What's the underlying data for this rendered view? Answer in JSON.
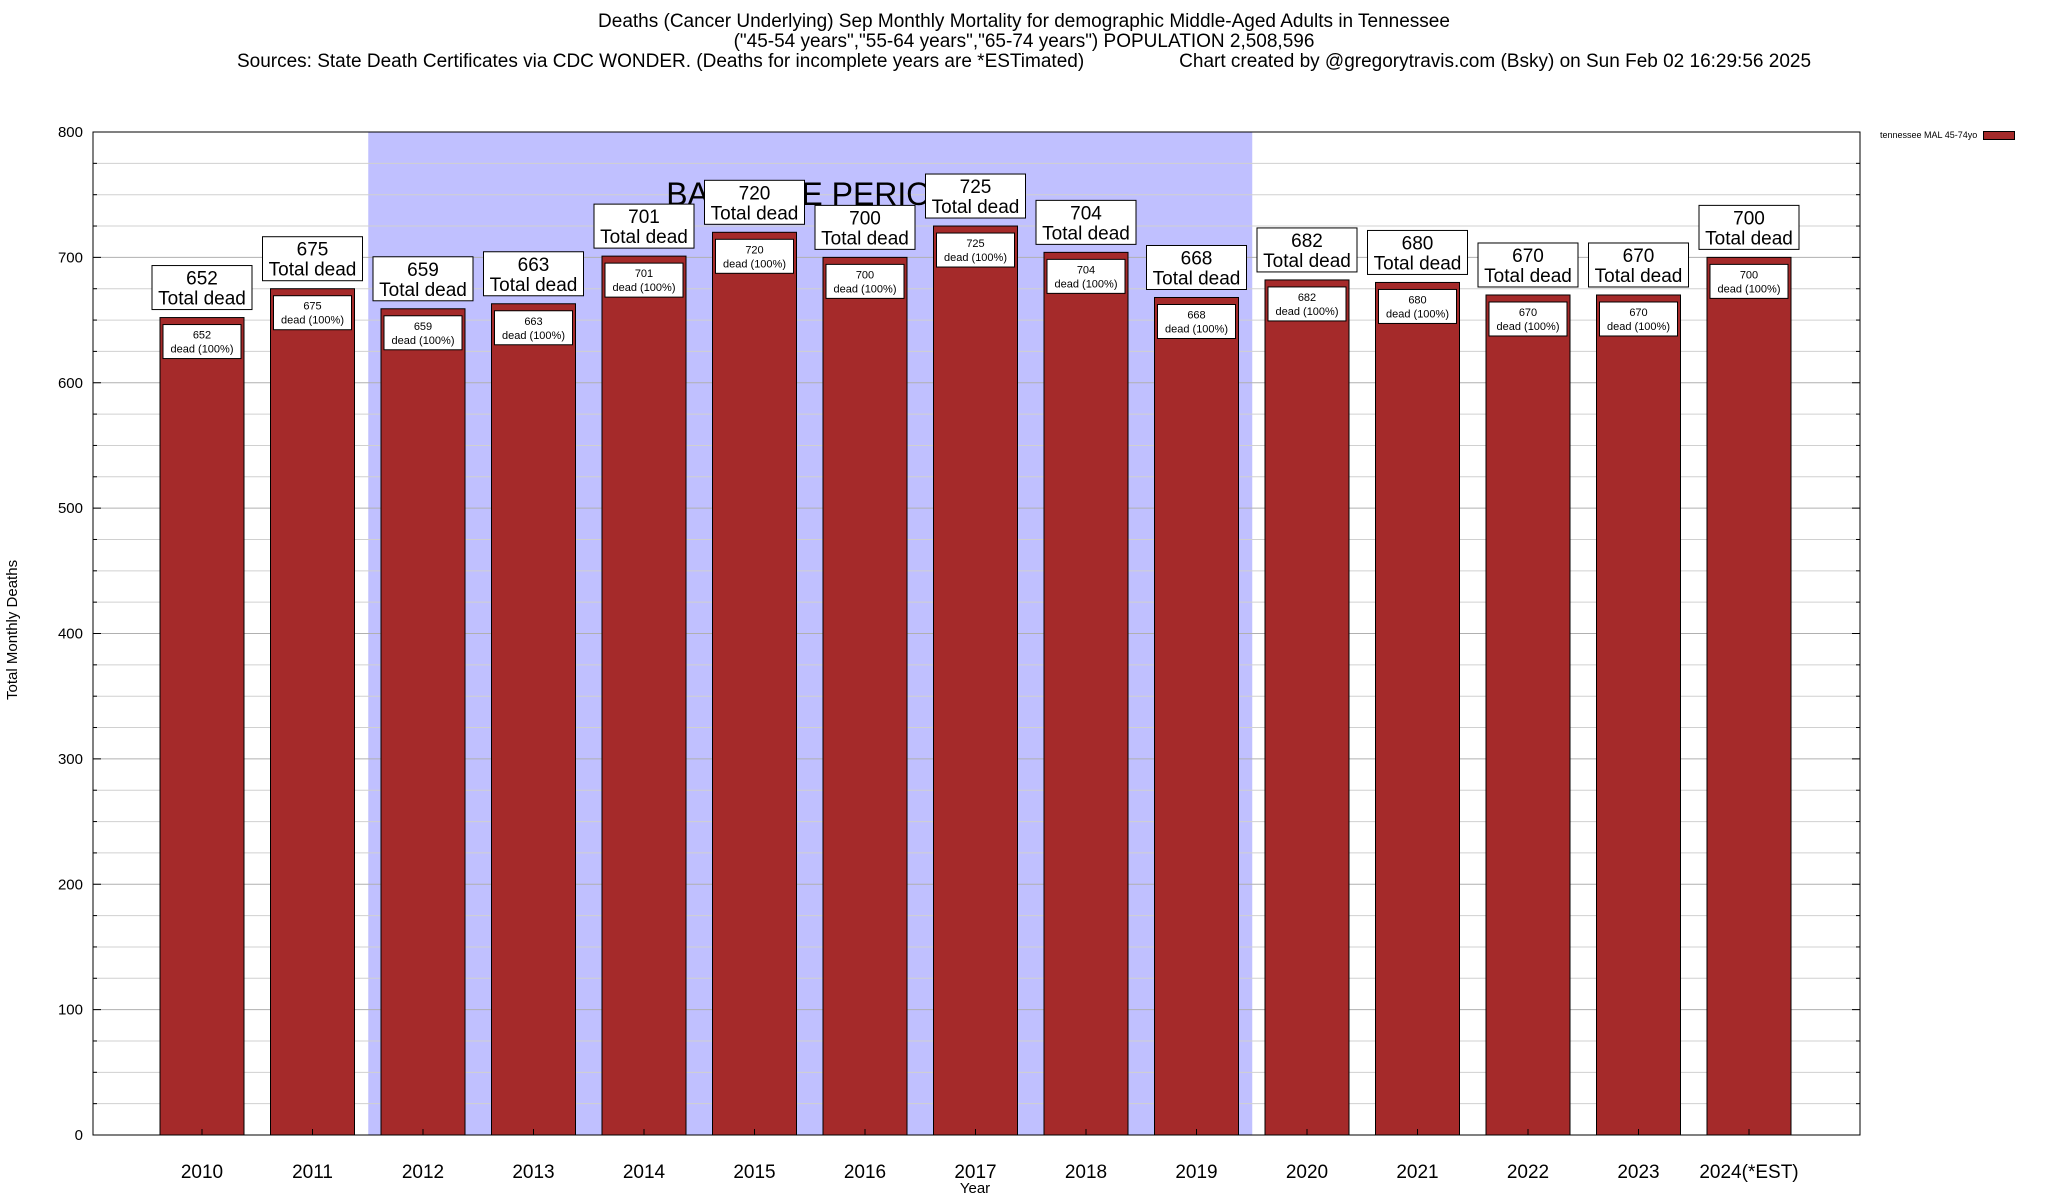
{
  "title": {
    "line1": "Deaths (Cancer Underlying) Sep Monthly Mortality for demographic Middle-Aged Adults in Tennessee",
    "line2": "(\"45-54 years\",\"55-64 years\",\"65-74 years\") POPULATION 2,508,596",
    "line3": "Sources: State Death Certificates via CDC WONDER. (Deaths for incomplete years are *ESTimated)                  Chart created by @gregorytravis.com (Bsky) on Sun Feb 02 16:29:56 2025"
  },
  "chart_data": {
    "type": "bar",
    "categories": [
      "2010",
      "2011",
      "2012",
      "2013",
      "2014",
      "2015",
      "2016",
      "2017",
      "2018",
      "2019",
      "2020",
      "2021",
      "2022",
      "2023",
      "2024(*EST)"
    ],
    "series": [
      {
        "name": "tennessee MAL 45-74yo",
        "values": [
          652,
          675,
          659,
          663,
          701,
          720,
          700,
          725,
          704,
          668,
          682,
          680,
          670,
          670,
          700
        ]
      }
    ],
    "xlabel": "Year",
    "ylabel": "Total Monthly Deaths",
    "ylim": [
      0,
      800
    ],
    "yticks": [
      0,
      100,
      200,
      300,
      400,
      500,
      600,
      700,
      800
    ],
    "grid": true,
    "legend_position": "top-right",
    "baseline_label": "BASELINE PERIOD",
    "baseline_range": [
      "2012",
      "2019"
    ],
    "top_label_suffix": "Total dead",
    "inner_label_suffix": "dead (100%)",
    "bar_color": "#a52a2a",
    "baseline_color": "#c0c0ff"
  }
}
